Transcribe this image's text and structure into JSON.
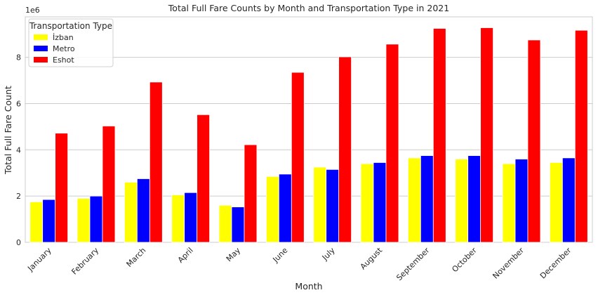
{
  "chart_data": {
    "type": "bar",
    "title": "Total Full Fare Counts by Month and Transportation Type in 2021",
    "xlabel": "Month",
    "ylabel": "Total Full Fare Count",
    "y_scale_label": "1e6",
    "ylim": [
      0,
      9.75
    ],
    "y_ticks": [
      "0",
      "2",
      "4",
      "6",
      "8"
    ],
    "y_tick_values": [
      0,
      2,
      4,
      6,
      8
    ],
    "grid": "horizontal",
    "legend": {
      "title": "Transportation Type",
      "placement": "top-left"
    },
    "categories": [
      "January",
      "February",
      "March",
      "April",
      "May",
      "June",
      "July",
      "August",
      "September",
      "October",
      "November",
      "December"
    ],
    "series": [
      {
        "name": "İzban",
        "color": "#ffff00",
        "values": [
          1.75,
          1.9,
          2.6,
          2.05,
          1.6,
          2.85,
          3.25,
          3.4,
          3.65,
          3.6,
          3.4,
          3.45
        ]
      },
      {
        "name": "Metro",
        "color": "#0000ff",
        "values": [
          1.85,
          2.0,
          2.75,
          2.15,
          1.53,
          2.95,
          3.15,
          3.45,
          3.75,
          3.75,
          3.6,
          3.65
        ]
      },
      {
        "name": "Eshot",
        "color": "#ff0000",
        "values": [
          4.72,
          5.03,
          6.93,
          5.52,
          4.22,
          7.35,
          8.02,
          8.57,
          9.25,
          9.28,
          8.75,
          9.17
        ]
      }
    ]
  }
}
